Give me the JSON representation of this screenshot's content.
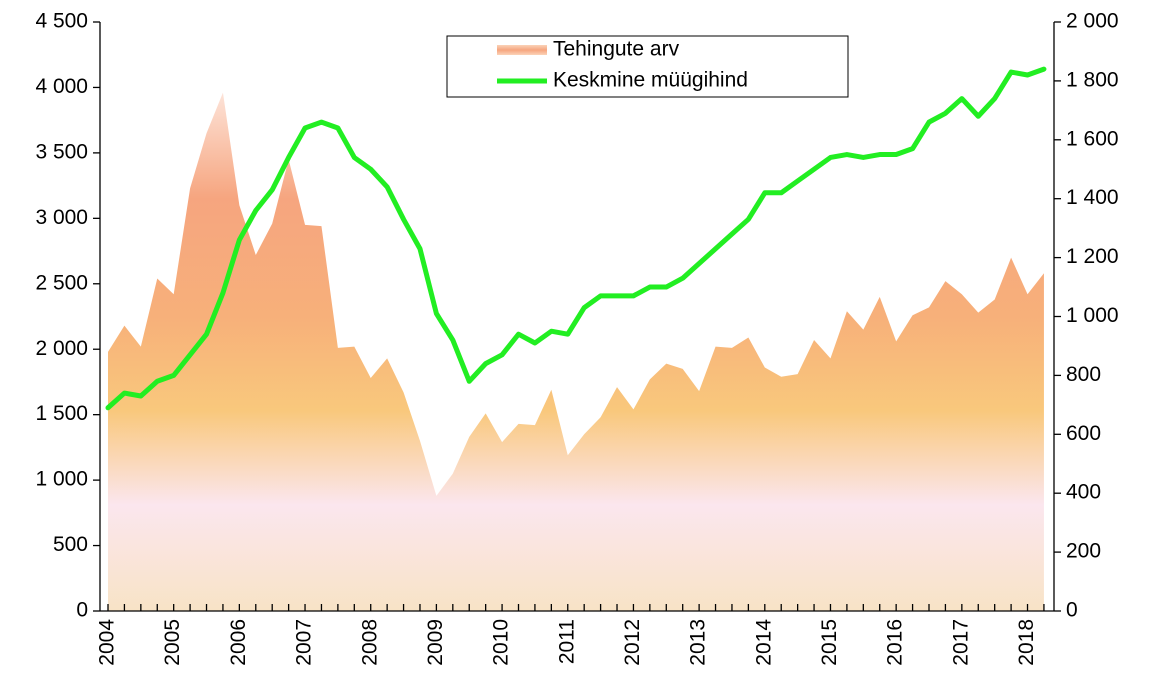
{
  "chart_data": {
    "type": "area",
    "categories": [
      "2004",
      null,
      null,
      null,
      "2005",
      null,
      null,
      null,
      "2006",
      null,
      null,
      null,
      "2007",
      null,
      null,
      null,
      "2008",
      null,
      null,
      null,
      "2009",
      null,
      null,
      null,
      "2010",
      null,
      null,
      null,
      "2011",
      null,
      null,
      null,
      "2012",
      null,
      null,
      null,
      "2013",
      null,
      null,
      null,
      "2014",
      null,
      null,
      null,
      "2015",
      null,
      null,
      null,
      "2016",
      null,
      null,
      null,
      "2017",
      null,
      null,
      null,
      "2018",
      null
    ],
    "series": [
      {
        "name": "Tehingute arv",
        "type": "area",
        "color": "#f6a57f",
        "values": [
          1980,
          2180,
          2020,
          2540,
          2420,
          3230,
          3650,
          3960,
          3100,
          2720,
          2960,
          3450,
          2950,
          2940,
          2010,
          2020,
          1780,
          1930,
          1670,
          1300,
          880,
          1050,
          1330,
          1510,
          1290,
          1430,
          1420,
          1690,
          1190,
          1350,
          1480,
          1710,
          1540,
          1770,
          1890,
          1850,
          1680,
          2020,
          2010,
          2090,
          1860,
          1790,
          1810,
          2070,
          1930,
          2290,
          2150,
          2400,
          2060,
          2260,
          2320,
          2520,
          2420,
          2280,
          2380,
          2700,
          2420,
          2580
        ]
      },
      {
        "name": "Keskmine müügihind",
        "type": "line",
        "color": "#22ee22",
        "axis": "y2",
        "values": [
          690,
          740,
          730,
          780,
          800,
          870,
          940,
          1080,
          1260,
          1360,
          1430,
          1540,
          1640,
          1660,
          1640,
          1540,
          1500,
          1440,
          1330,
          1230,
          1010,
          920,
          780,
          840,
          870,
          940,
          910,
          950,
          940,
          1030,
          1070,
          1070,
          1070,
          1100,
          1100,
          1130,
          1180,
          1230,
          1280,
          1330,
          1420,
          1420,
          1460,
          1500,
          1540,
          1550,
          1540,
          1550,
          1550,
          1570,
          1660,
          1690,
          1740,
          1680,
          1740,
          1830,
          1820,
          1840
        ]
      }
    ],
    "ylim": [
      0,
      4500
    ],
    "yticks": [
      0,
      500,
      {
        "value": 1000,
        "label": "1 000"
      },
      {
        "value": 1500,
        "label": "1 500"
      },
      {
        "value": 2000,
        "label": "2 000"
      },
      {
        "value": 2500,
        "label": "2 500"
      },
      {
        "value": 3000,
        "label": "3 000"
      },
      {
        "value": 3500,
        "label": "3 500"
      },
      {
        "value": 4000,
        "label": "4 000"
      },
      {
        "value": 4500,
        "label": "4 500"
      }
    ],
    "y2lim": [
      0,
      2000
    ],
    "y2ticks": [
      0,
      200,
      400,
      600,
      800,
      {
        "value": 1000,
        "label": "1 000"
      },
      {
        "value": 1200,
        "label": "1 200"
      },
      {
        "value": 1400,
        "label": "1 400"
      },
      {
        "value": 1600,
        "label": "1 600"
      },
      {
        "value": 1800,
        "label": "1 800"
      },
      {
        "value": 2000,
        "label": "2 000"
      }
    ],
    "grid": false,
    "legend": "top"
  }
}
